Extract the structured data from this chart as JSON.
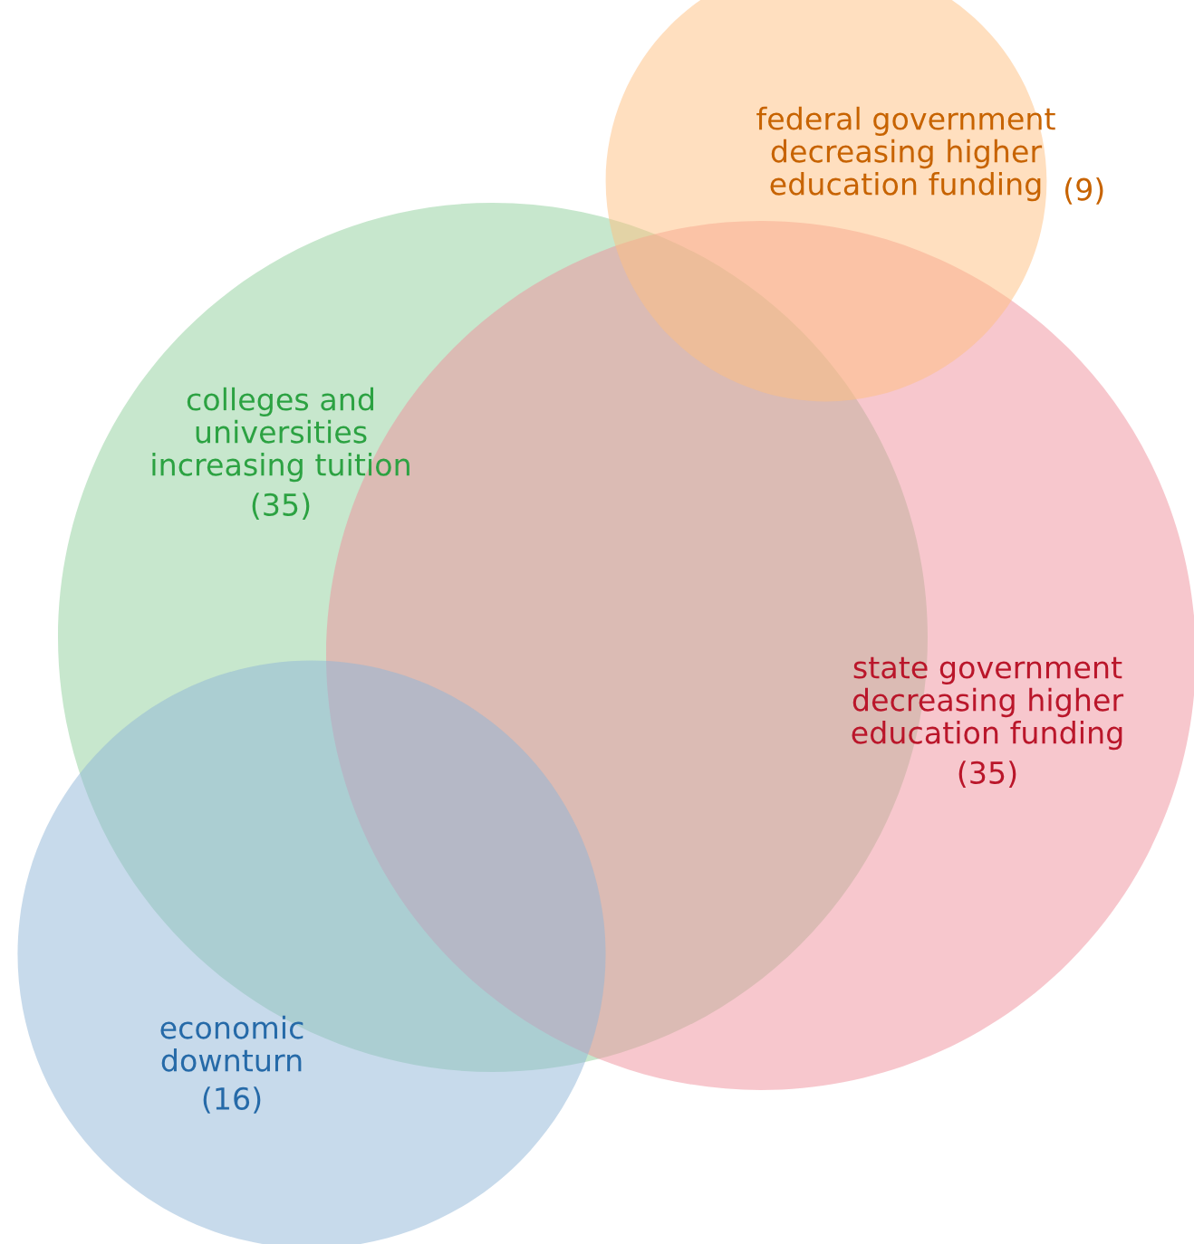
{
  "chart_data": {
    "type": "other",
    "categories": [
      "federal government\ndecreasing higher\neducation funding",
      "colleges and\nuniversities\nincreasing tuition",
      "state government\ndecreasing higher\neducation funding",
      "economic\ndownturn"
    ],
    "values": [
      9,
      35,
      35,
      16
    ],
    "value_labels": [
      "(9)",
      "(35)",
      "(35)",
      "(16)"
    ],
    "colors": [
      "#ffbf80",
      "#8fd09b",
      "#ef8f9b",
      "#8fb5d8"
    ]
  }
}
